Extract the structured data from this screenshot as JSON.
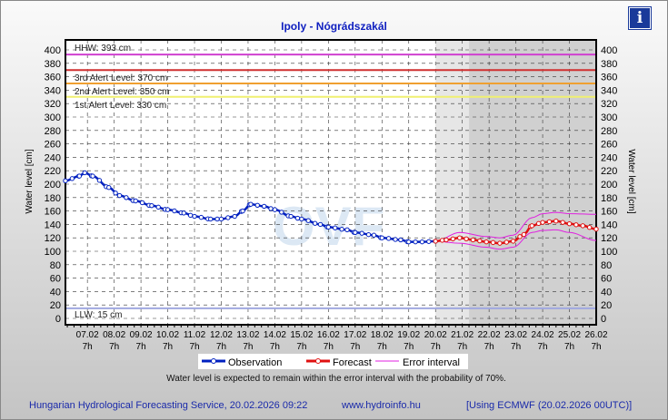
{
  "title": "Ipoly - Nógrádszakál",
  "ylabel_left": "Water level [cm]",
  "ylabel_right": "Water level [cm]",
  "note": "Water level is expected to remain within the error interval with the probability of 70%.",
  "footer": {
    "left": "Hungarian Hydrological Forecasting Service, 20.02.2026 09:22",
    "center": "www.hydroinfo.hu",
    "right": "[Using ECMWF (20.02.2026  00UTC)]"
  },
  "info_icon": "i",
  "chart_data": {
    "type": "line",
    "title": "Ipoly - Nógrádszakál",
    "ylim": [
      0,
      410
    ],
    "yticks": [
      0,
      20,
      40,
      60,
      80,
      100,
      120,
      140,
      160,
      180,
      200,
      220,
      240,
      260,
      280,
      300,
      320,
      340,
      360,
      380,
      400
    ],
    "xticks": [
      "07.02",
      "08.02",
      "09.02",
      "10.02",
      "11.02",
      "12.02",
      "13.02",
      "14.02",
      "15.02",
      "16.02",
      "17.02",
      "18.02",
      "19.02",
      "20.02",
      "21.02",
      "22.02",
      "23.02",
      "24.02",
      "25.02",
      "26.02"
    ],
    "xtick_hour": "7h",
    "x_unit": "days since 07.02 7h",
    "levels": [
      {
        "label": "HHW: 393 cm",
        "value": 393,
        "color": "#d040d0"
      },
      {
        "label": "3rd Alert Level: 370 cm",
        "value": 370,
        "color": "#d03030"
      },
      {
        "label": "2nd Alert Level: 350 cm",
        "value": 350,
        "color": "#f0a030"
      },
      {
        "label": "1st Alert Level: 330 cm",
        "value": 330,
        "color": "#f0f070"
      },
      {
        "label": "LLW: 15 cm",
        "value": 15,
        "color": "#a0a8e0"
      }
    ],
    "series": [
      {
        "name": "Observation",
        "color": "#0020c0",
        "points": [
          [
            -0.82,
            205
          ],
          [
            -0.3,
            212
          ],
          [
            -0.1,
            217
          ],
          [
            0.2,
            212
          ],
          [
            0.8,
            195
          ],
          [
            1.2,
            183
          ],
          [
            1.8,
            175
          ],
          [
            2.4,
            168
          ],
          [
            3,
            162
          ],
          [
            3.6,
            157
          ],
          [
            4,
            152
          ],
          [
            4.6,
            148
          ],
          [
            5,
            148
          ],
          [
            5.5,
            152
          ],
          [
            5.8,
            160
          ],
          [
            6.1,
            170
          ],
          [
            6.6,
            167
          ],
          [
            7,
            162
          ],
          [
            7.6,
            152
          ],
          [
            8,
            148
          ],
          [
            8.7,
            140
          ],
          [
            9,
            136
          ],
          [
            9.7,
            132
          ],
          [
            10,
            128
          ],
          [
            10.7,
            124
          ],
          [
            11,
            120
          ],
          [
            11.7,
            117
          ],
          [
            12,
            114
          ],
          [
            12.5,
            114
          ],
          [
            13,
            115
          ]
        ]
      },
      {
        "name": "Forecast",
        "color": "#e01010",
        "points": [
          [
            13,
            115
          ],
          [
            13.4,
            117
          ],
          [
            13.9,
            120
          ],
          [
            14.4,
            117
          ],
          [
            14.9,
            114
          ],
          [
            15.4,
            112
          ],
          [
            15.9,
            115
          ],
          [
            16.3,
            125
          ],
          [
            16.6,
            138
          ],
          [
            17,
            143
          ],
          [
            17.5,
            145
          ],
          [
            18,
            141
          ],
          [
            18.5,
            138
          ],
          [
            19,
            133
          ]
        ]
      },
      {
        "name": "Error interval",
        "color": "#e020e0",
        "upper": [
          [
            13,
            115
          ],
          [
            13.9,
            128
          ],
          [
            14.9,
            122
          ],
          [
            15.4,
            120
          ],
          [
            15.9,
            124
          ],
          [
            16.6,
            150
          ],
          [
            17,
            156
          ],
          [
            17.5,
            158
          ],
          [
            18,
            156
          ],
          [
            19,
            155
          ]
        ],
        "lower": [
          [
            13,
            115
          ],
          [
            13.9,
            112
          ],
          [
            14.9,
            106
          ],
          [
            15.4,
            103
          ],
          [
            15.9,
            106
          ],
          [
            16.6,
            128
          ],
          [
            17,
            131
          ],
          [
            17.5,
            132
          ],
          [
            18,
            128
          ],
          [
            19,
            116
          ]
        ]
      }
    ],
    "shaded_regions": [
      {
        "from": 13,
        "to": 14.25,
        "shade": "light"
      },
      {
        "from": 14.25,
        "to": 19,
        "shade": "dark"
      }
    ],
    "legend": [
      "Observation",
      "Forecast",
      "Error interval"
    ],
    "legend_position": "bottom"
  }
}
